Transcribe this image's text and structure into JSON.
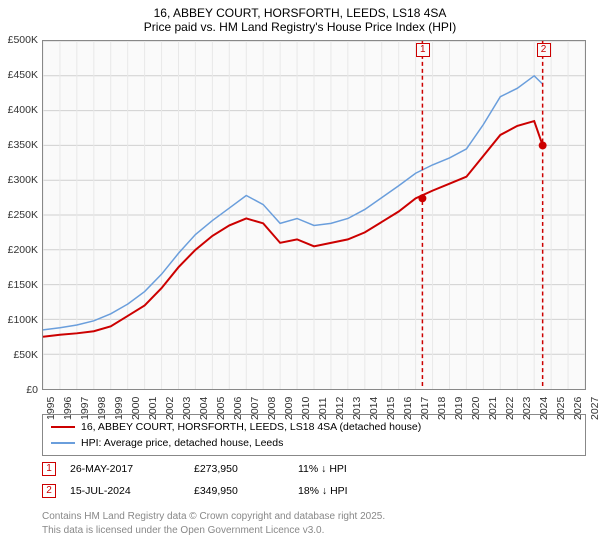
{
  "title_line1": "16, ABBEY COURT, HORSFORTH, LEEDS, LS18 4SA",
  "title_line2": "Price paid vs. HM Land Registry's House Price Index (HPI)",
  "chart": {
    "type": "line",
    "background_color": "#fafafa",
    "border_color": "#888888",
    "grid_color": "#d0d0d0",
    "ylim": [
      0,
      500000
    ],
    "ytick_step": 50000,
    "ylabels": [
      "£0",
      "£50K",
      "£100K",
      "£150K",
      "£200K",
      "£250K",
      "£300K",
      "£350K",
      "£400K",
      "£450K",
      "£500K"
    ],
    "xlim": [
      1995,
      2027
    ],
    "xticks": [
      1995,
      1996,
      1997,
      1998,
      1999,
      2000,
      2001,
      2002,
      2003,
      2004,
      2005,
      2006,
      2007,
      2008,
      2009,
      2010,
      2011,
      2012,
      2013,
      2014,
      2015,
      2016,
      2017,
      2018,
      2019,
      2020,
      2021,
      2022,
      2023,
      2024,
      2025,
      2026,
      2027
    ],
    "label_fontsize": 10.5,
    "series": [
      {
        "name": "price_paid",
        "color": "#cc0000",
        "width": 2,
        "points": [
          [
            1995,
            75000
          ],
          [
            1996,
            78000
          ],
          [
            1997,
            80000
          ],
          [
            1998,
            83000
          ],
          [
            1999,
            90000
          ],
          [
            2000,
            105000
          ],
          [
            2001,
            120000
          ],
          [
            2002,
            145000
          ],
          [
            2003,
            175000
          ],
          [
            2004,
            200000
          ],
          [
            2005,
            220000
          ],
          [
            2006,
            235000
          ],
          [
            2007,
            245000
          ],
          [
            2008,
            238000
          ],
          [
            2009,
            210000
          ],
          [
            2010,
            215000
          ],
          [
            2011,
            205000
          ],
          [
            2012,
            210000
          ],
          [
            2013,
            215000
          ],
          [
            2014,
            225000
          ],
          [
            2015,
            240000
          ],
          [
            2016,
            255000
          ],
          [
            2017,
            273950
          ],
          [
            2018,
            285000
          ],
          [
            2019,
            295000
          ],
          [
            2020,
            305000
          ],
          [
            2021,
            335000
          ],
          [
            2022,
            365000
          ],
          [
            2023,
            378000
          ],
          [
            2024,
            385000
          ],
          [
            2024.5,
            349950
          ]
        ]
      },
      {
        "name": "hpi",
        "color": "#6a9edc",
        "width": 1.5,
        "points": [
          [
            1995,
            85000
          ],
          [
            1996,
            88000
          ],
          [
            1997,
            92000
          ],
          [
            1998,
            98000
          ],
          [
            1999,
            108000
          ],
          [
            2000,
            122000
          ],
          [
            2001,
            140000
          ],
          [
            2002,
            165000
          ],
          [
            2003,
            195000
          ],
          [
            2004,
            222000
          ],
          [
            2005,
            242000
          ],
          [
            2006,
            260000
          ],
          [
            2007,
            278000
          ],
          [
            2008,
            265000
          ],
          [
            2009,
            238000
          ],
          [
            2010,
            245000
          ],
          [
            2011,
            235000
          ],
          [
            2012,
            238000
          ],
          [
            2013,
            245000
          ],
          [
            2014,
            258000
          ],
          [
            2015,
            275000
          ],
          [
            2016,
            292000
          ],
          [
            2017,
            310000
          ],
          [
            2018,
            322000
          ],
          [
            2019,
            332000
          ],
          [
            2020,
            345000
          ],
          [
            2021,
            380000
          ],
          [
            2022,
            420000
          ],
          [
            2023,
            432000
          ],
          [
            2024,
            450000
          ],
          [
            2024.5,
            438000
          ]
        ]
      }
    ],
    "markers": [
      {
        "label": "1",
        "x": 2017.4,
        "price_y": 273950
      },
      {
        "label": "2",
        "x": 2024.5,
        "price_y": 349950
      }
    ]
  },
  "legend": {
    "items": [
      {
        "color": "#cc0000",
        "width": 2.5,
        "label": "16, ABBEY COURT, HORSFORTH, LEEDS, LS18 4SA (detached house)"
      },
      {
        "color": "#6a9edc",
        "width": 2,
        "label": "HPI: Average price, detached house, Leeds"
      }
    ]
  },
  "transactions": [
    {
      "marker": "1",
      "date": "26-MAY-2017",
      "price": "£273,950",
      "pct": "11% ↓ HPI"
    },
    {
      "marker": "2",
      "date": "15-JUL-2024",
      "price": "£349,950",
      "pct": "18% ↓ HPI"
    }
  ],
  "footer_line1": "Contains HM Land Registry data © Crown copyright and database right 2025.",
  "footer_line2": "This data is licensed under the Open Government Licence v3.0."
}
